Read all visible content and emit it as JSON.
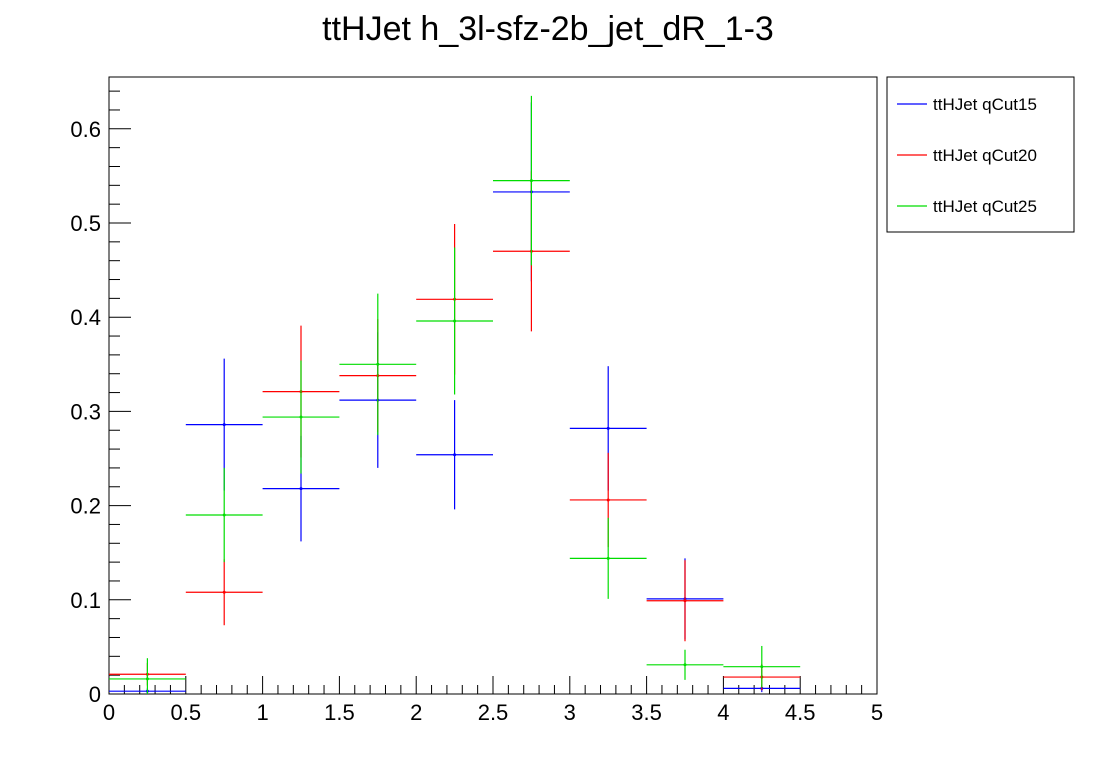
{
  "chart_data": {
    "type": "histogram-errorbar",
    "title": "ttHJet h_3l-sfz-2b_jet_dR_1-3",
    "xlabel": "",
    "ylabel": "",
    "xlim": [
      0,
      5
    ],
    "ylim": [
      0,
      0.655
    ],
    "x_ticks": [
      "0",
      "0.5",
      "1",
      "1.5",
      "2",
      "2.5",
      "3",
      "3.5",
      "4",
      "4.5",
      "5"
    ],
    "y_ticks": [
      "0",
      "0.1",
      "0.2",
      "0.3",
      "0.4",
      "0.5",
      "0.6"
    ],
    "bin_edges": [
      0,
      0.5,
      1,
      1.5,
      2,
      2.5,
      3,
      3.5,
      4,
      4.5
    ],
    "legend_position": "top-right",
    "series": [
      {
        "name": "ttHJet qCut15",
        "color": "#0000ff",
        "values": [
          0.003,
          0.286,
          0.218,
          0.312,
          0.254,
          0.533,
          0.282,
          0.101,
          0.006
        ],
        "errors": [
          0.003,
          0.07,
          0.056,
          0.072,
          0.058,
          0.095,
          0.066,
          0.043,
          0.004
        ]
      },
      {
        "name": "ttHJet qCut20",
        "color": "#ff0000",
        "values": [
          0.021,
          0.108,
          0.321,
          0.338,
          0.419,
          0.47,
          0.206,
          0.099,
          0.018
        ],
        "errors": [
          0.012,
          0.035,
          0.07,
          0.06,
          0.08,
          0.085,
          0.05,
          0.043,
          0.014
        ]
      },
      {
        "name": "ttHJet qCut25",
        "color": "#00dd00",
        "values": [
          0.016,
          0.19,
          0.294,
          0.35,
          0.396,
          0.545,
          0.144,
          0.031,
          0.029
        ],
        "errors": [
          0.022,
          0.05,
          0.06,
          0.075,
          0.078,
          0.09,
          0.043,
          0.016,
          0.022
        ]
      }
    ]
  }
}
